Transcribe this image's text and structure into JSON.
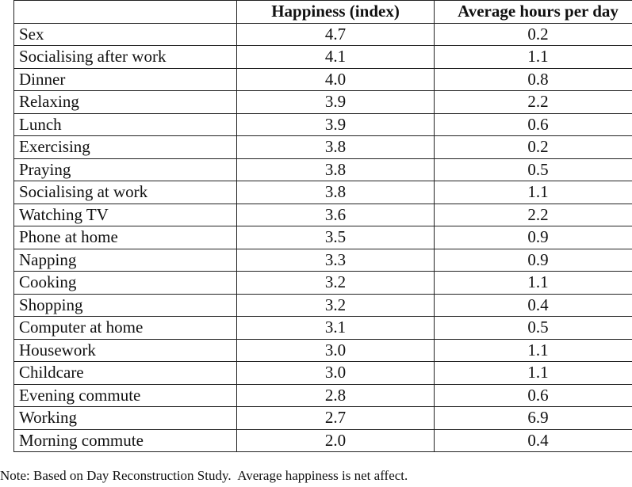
{
  "table": {
    "header": [
      "Happiness (index)",
      "Average hours per day"
    ],
    "rows": [
      [
        "Sex",
        "4.7",
        "0.2"
      ],
      [
        "Socialising after work",
        "4.1",
        "1.1"
      ],
      [
        "Dinner",
        "4.0",
        "0.8"
      ],
      [
        "Relaxing",
        "3.9",
        "2.2"
      ],
      [
        "Lunch",
        "3.9",
        "0.6"
      ],
      [
        "Exercising",
        "3.8",
        "0.2"
      ],
      [
        "Praying",
        "3.8",
        "0.5"
      ],
      [
        "Socialising at work",
        "3.8",
        "1.1"
      ],
      [
        "Watching TV",
        "3.6",
        "2.2"
      ],
      [
        "Phone at home",
        "3.5",
        "0.9"
      ],
      [
        "Napping",
        "3.3",
        "0.9"
      ],
      [
        "Cooking",
        "3.2",
        "1.1"
      ],
      [
        "Shopping",
        "3.2",
        "0.4"
      ],
      [
        "Computer at home",
        "3.1",
        "0.5"
      ],
      [
        "Housework",
        "3.0",
        "1.1"
      ],
      [
        "Childcare",
        "3.0",
        "1.1"
      ],
      [
        "Evening commute",
        "2.8",
        "0.6"
      ],
      [
        "Working",
        "2.7",
        "6.9"
      ],
      [
        "Morning commute",
        "2.0",
        "0.4"
      ]
    ]
  },
  "note": "Note: Based on Day Reconstruction Study.  Average happiness is net affect."
}
